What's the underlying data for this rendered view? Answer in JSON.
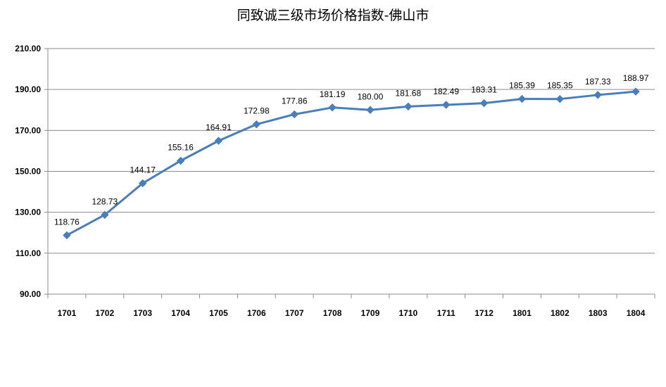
{
  "chart_data": {
    "type": "line",
    "title": "同致诚三级市场价格指数-佛山市",
    "xlabel": "",
    "ylabel": "",
    "categories": [
      "1701",
      "1702",
      "1703",
      "1704",
      "1705",
      "1706",
      "1707",
      "1708",
      "1709",
      "1710",
      "1711",
      "1712",
      "1801",
      "1802",
      "1803",
      "1804"
    ],
    "values": [
      118.76,
      128.73,
      144.17,
      155.16,
      164.91,
      172.98,
      177.86,
      181.19,
      180.0,
      181.68,
      182.49,
      183.31,
      185.39,
      185.35,
      187.33,
      188.97
    ],
    "value_labels": [
      "118.76",
      "128.73",
      "144.17",
      "155.16",
      "164.91",
      "172.98",
      "177.86",
      "181.19",
      "180.00",
      "181.68",
      "182.49",
      "183.31",
      "185.39",
      "185.35",
      "187.33",
      "188.97"
    ],
    "ylim": [
      90,
      210
    ],
    "yticks": [
      "90.00",
      "110.00",
      "130.00",
      "150.00",
      "170.00",
      "190.00",
      "210.00"
    ],
    "grid": true,
    "line_color": "#4a7ebb",
    "marker": "diamond"
  }
}
